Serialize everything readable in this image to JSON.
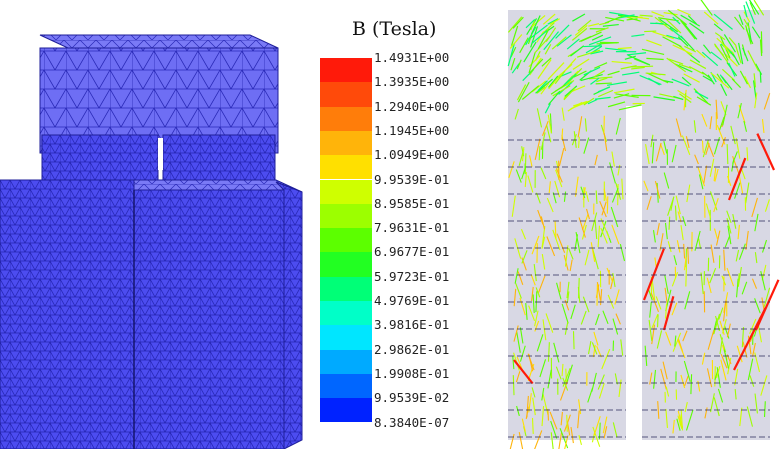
{
  "legend": {
    "title": "B (Tesla)",
    "ticks": [
      "1.4931E+00",
      "1.3935E+00",
      "1.2940E+00",
      "1.1945E+00",
      "1.0949E+00",
      "9.9539E-01",
      "8.9585E-01",
      "7.9631E-01",
      "6.9677E-01",
      "5.9723E-01",
      "4.9769E-01",
      "3.9816E-01",
      "2.9862E-01",
      "1.9908E-01",
      "9.9539E-02",
      "8.3840E-07"
    ],
    "colors": [
      "#ff1a0a",
      "#ff4a0a",
      "#ff7d0a",
      "#ffb40a",
      "#ffe000",
      "#cfff00",
      "#9cff00",
      "#5cff00",
      "#22ff22",
      "#00ff77",
      "#00ffc8",
      "#00e6ff",
      "#00aaff",
      "#0066ff",
      "#0022ff"
    ]
  },
  "mesh": {
    "fill_color": "#4a4ae8",
    "edge_color": "#1e1e9a"
  },
  "field": {
    "frame_color": "#c8c8d8"
  }
}
